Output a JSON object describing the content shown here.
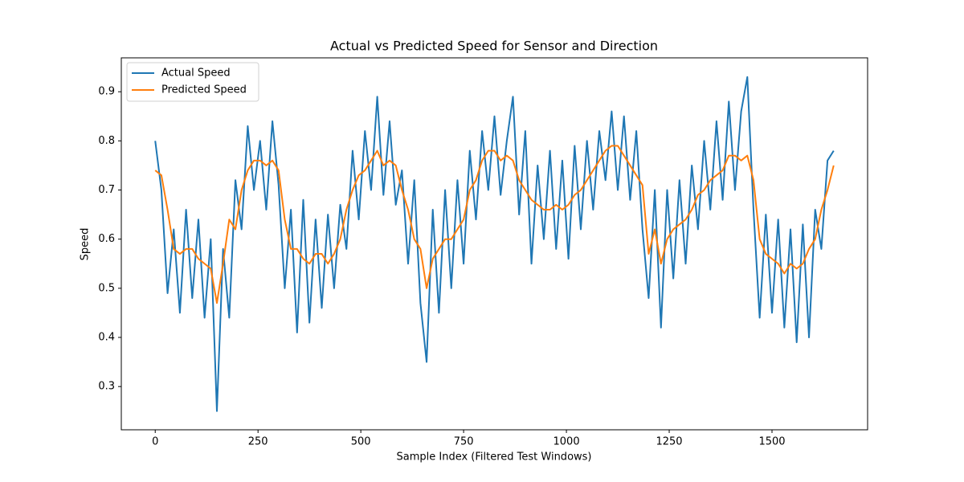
{
  "chart_data": {
    "type": "line",
    "title": "Actual vs Predicted Speed for Sensor and Direction",
    "x_label": "Sample Index (Filtered Test Windows)",
    "y_label": "Speed",
    "x": [
      0,
      15,
      30,
      45,
      60,
      75,
      90,
      105,
      120,
      135,
      150,
      165,
      180,
      195,
      210,
      225,
      240,
      255,
      270,
      285,
      300,
      315,
      330,
      345,
      360,
      375,
      390,
      405,
      420,
      435,
      450,
      465,
      480,
      495,
      510,
      525,
      540,
      555,
      570,
      585,
      600,
      615,
      630,
      645,
      660,
      675,
      690,
      705,
      720,
      735,
      750,
      765,
      780,
      795,
      810,
      825,
      840,
      855,
      870,
      885,
      900,
      915,
      930,
      945,
      960,
      975,
      990,
      1005,
      1020,
      1035,
      1050,
      1065,
      1080,
      1095,
      1110,
      1125,
      1140,
      1155,
      1170,
      1185,
      1200,
      1215,
      1230,
      1245,
      1260,
      1275,
      1290,
      1305,
      1320,
      1335,
      1350,
      1365,
      1380,
      1395,
      1410,
      1425,
      1440,
      1455,
      1470,
      1485,
      1500,
      1515,
      1530,
      1545,
      1560,
      1575,
      1590,
      1605,
      1620,
      1635,
      1650
    ],
    "series": [
      {
        "name": "Actual Speed",
        "color": "#1f77b4",
        "values": [
          0.8,
          0.7,
          0.49,
          0.62,
          0.45,
          0.66,
          0.48,
          0.64,
          0.44,
          0.6,
          0.25,
          0.58,
          0.44,
          0.72,
          0.62,
          0.83,
          0.7,
          0.8,
          0.66,
          0.84,
          0.71,
          0.5,
          0.66,
          0.41,
          0.68,
          0.43,
          0.64,
          0.46,
          0.65,
          0.5,
          0.67,
          0.58,
          0.78,
          0.64,
          0.82,
          0.7,
          0.89,
          0.69,
          0.84,
          0.67,
          0.74,
          0.55,
          0.72,
          0.47,
          0.35,
          0.66,
          0.45,
          0.7,
          0.5,
          0.72,
          0.55,
          0.78,
          0.64,
          0.82,
          0.7,
          0.85,
          0.69,
          0.8,
          0.89,
          0.65,
          0.82,
          0.55,
          0.75,
          0.6,
          0.78,
          0.58,
          0.76,
          0.56,
          0.79,
          0.62,
          0.8,
          0.66,
          0.82,
          0.72,
          0.86,
          0.7,
          0.85,
          0.68,
          0.82,
          0.62,
          0.48,
          0.7,
          0.42,
          0.7,
          0.52,
          0.72,
          0.55,
          0.75,
          0.62,
          0.8,
          0.66,
          0.84,
          0.68,
          0.88,
          0.7,
          0.86,
          0.93,
          0.66,
          0.44,
          0.65,
          0.45,
          0.64,
          0.42,
          0.62,
          0.39,
          0.63,
          0.4,
          0.66,
          0.58,
          0.76,
          0.78
        ]
      },
      {
        "name": "Predicted Speed",
        "color": "#ff7f0e",
        "values": [
          0.74,
          0.73,
          0.66,
          0.58,
          0.57,
          0.58,
          0.58,
          0.56,
          0.55,
          0.54,
          0.47,
          0.55,
          0.64,
          0.62,
          0.7,
          0.74,
          0.76,
          0.76,
          0.75,
          0.76,
          0.74,
          0.64,
          0.58,
          0.58,
          0.56,
          0.55,
          0.57,
          0.57,
          0.55,
          0.57,
          0.6,
          0.66,
          0.7,
          0.73,
          0.74,
          0.76,
          0.78,
          0.75,
          0.76,
          0.75,
          0.7,
          0.66,
          0.6,
          0.58,
          0.5,
          0.56,
          0.58,
          0.6,
          0.6,
          0.62,
          0.64,
          0.7,
          0.72,
          0.76,
          0.78,
          0.78,
          0.76,
          0.77,
          0.76,
          0.72,
          0.7,
          0.68,
          0.67,
          0.66,
          0.66,
          0.67,
          0.66,
          0.67,
          0.69,
          0.7,
          0.72,
          0.74,
          0.76,
          0.78,
          0.79,
          0.79,
          0.77,
          0.75,
          0.73,
          0.71,
          0.57,
          0.62,
          0.55,
          0.6,
          0.62,
          0.63,
          0.64,
          0.66,
          0.69,
          0.7,
          0.72,
          0.73,
          0.74,
          0.77,
          0.77,
          0.76,
          0.77,
          0.72,
          0.6,
          0.57,
          0.56,
          0.55,
          0.53,
          0.55,
          0.54,
          0.55,
          0.58,
          0.6,
          0.66,
          0.7,
          0.75
        ]
      }
    ],
    "xlim": [
      -82.5,
      1732.5
    ],
    "ylim": [
      0.212,
      0.969
    ],
    "xticks": [
      0,
      250,
      500,
      750,
      1000,
      1250,
      1500
    ],
    "yticks": [
      0.3,
      0.4,
      0.5,
      0.6,
      0.7,
      0.8,
      0.9
    ],
    "legend": "upper left"
  }
}
